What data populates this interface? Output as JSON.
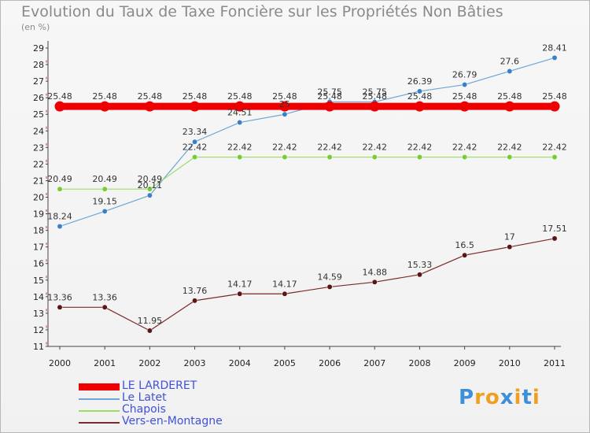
{
  "title": "Evolution du Taux de Taxe Foncière sur les Propriétés Non Bâties",
  "subtitle": "(en %)",
  "logo": {
    "letters": [
      "P",
      "r",
      "o",
      "x",
      "i",
      "t",
      "i"
    ],
    "colors": [
      "#3d8fd8",
      "#f0a020",
      "#f0a020",
      "#3d8fd8",
      "#f0a020",
      "#3d8fd8",
      "#f0a020"
    ]
  },
  "chart_data": {
    "type": "line",
    "x": [
      "2000",
      "2001",
      "2002",
      "2003",
      "2004",
      "2005",
      "2006",
      "2007",
      "2008",
      "2009",
      "2010",
      "2011"
    ],
    "ylim": [
      11,
      29
    ],
    "yticks": [
      11,
      12,
      13,
      14,
      15,
      16,
      17,
      18,
      19,
      20,
      21,
      22,
      23,
      24,
      25,
      26,
      27,
      28,
      29
    ],
    "grid": false,
    "legend": "bottom-left",
    "series": [
      {
        "name": "LE LARDERET",
        "color": "#ee0000",
        "width": 9,
        "marker": 6.5,
        "values": [
          25.48,
          25.48,
          25.48,
          25.48,
          25.48,
          25.48,
          25.48,
          25.48,
          25.48,
          25.48,
          25.48,
          25.48
        ],
        "labels": [
          "25.48",
          "25.48",
          "25.48",
          "25.48",
          "25.48",
          "25.48",
          "25.48",
          "25.48",
          "25.48",
          "25.48",
          "25.48",
          "25.48"
        ]
      },
      {
        "name": "Le Latet",
        "color": "#6fa5d6",
        "width": 1.2,
        "marker": 3.2,
        "markerColor": "#3a80c8",
        "values": [
          18.24,
          19.15,
          20.11,
          23.34,
          24.51,
          25.0,
          25.75,
          25.75,
          26.39,
          26.79,
          27.6,
          28.41
        ],
        "labels": [
          "18.24",
          "19.15",
          "20.11",
          "23.34",
          "24.51",
          "25",
          "25.75",
          "25.75",
          "26.39",
          "26.79",
          "27.6",
          "28.41"
        ]
      },
      {
        "name": "Chapois",
        "color": "#99dd66",
        "width": 1.2,
        "marker": 3.2,
        "markerColor": "#77cc33",
        "values": [
          20.49,
          20.49,
          20.49,
          22.42,
          22.42,
          22.42,
          22.42,
          22.42,
          22.42,
          22.42,
          22.42,
          22.42
        ],
        "labels": [
          "20.49",
          "20.49",
          "20.49",
          "22.42",
          "22.42",
          "22.42",
          "22.42",
          "22.42",
          "22.42",
          "22.42",
          "22.42",
          "22.42"
        ]
      },
      {
        "name": "Vers-en-Montagne",
        "color": "#7a2a2a",
        "width": 1.2,
        "marker": 3.2,
        "markerColor": "#5a1515",
        "values": [
          13.36,
          13.36,
          11.95,
          13.76,
          14.17,
          14.17,
          14.59,
          14.88,
          15.33,
          16.5,
          17.0,
          17.51
        ],
        "labels": [
          "13.36",
          "13.36",
          "11.95",
          "13.76",
          "14.17",
          "14.17",
          "14.59",
          "14.88",
          "15.33",
          "16.5",
          "17",
          "17.51"
        ]
      }
    ]
  }
}
